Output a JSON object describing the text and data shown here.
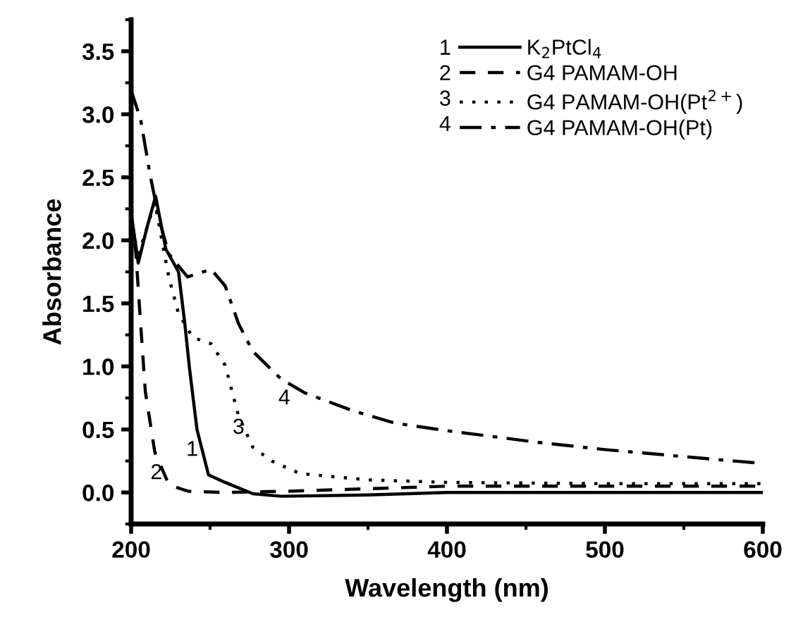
{
  "chart_data": {
    "type": "line",
    "xlabel": "Wavelength (nm)",
    "ylabel": "Absorbance",
    "xlim": [
      200,
      600
    ],
    "ylim": [
      -0.25,
      3.75
    ],
    "xticks": [
      200,
      300,
      400,
      500,
      600
    ],
    "yticks": [
      {
        "value": 0,
        "label": "0.0"
      },
      0.5,
      {
        "value": 1,
        "label": "1.0"
      },
      1.5,
      {
        "value": 2,
        "label": "2.0"
      },
      2.5,
      {
        "value": 3,
        "label": "3.0"
      },
      3.5
    ],
    "legend": "top right",
    "grid": false,
    "series": [
      {
        "name": "K$_{2}$PtCl$_{4}$",
        "color": "#000000",
        "line_style": "solid",
        "x": [
          200,
          204.5,
          210,
          215.5,
          222,
          230,
          234,
          237,
          241.7,
          249,
          259.5,
          277,
          295,
          350,
          400,
          500,
          600
        ],
        "values": [
          2.22,
          1.82,
          2.1,
          2.35,
          1.93,
          1.75,
          1.34,
          0.98,
          0.5,
          0.14,
          0.08,
          -0.01,
          -0.03,
          -0.02,
          0.0,
          0.0,
          0.0
        ]
      },
      {
        "name": "G4 PAMAM-OH",
        "color": "#000000",
        "line_style": "dashed",
        "x": [
          200,
          203,
          206,
          209,
          215,
          224,
          236,
          260,
          300,
          350,
          400,
          500,
          600
        ],
        "values": [
          2.2,
          1.9,
          1.34,
          0.8,
          0.32,
          0.06,
          0.01,
          0.0,
          0.01,
          0.03,
          0.05,
          0.05,
          0.05
        ]
      },
      {
        "name": "G4 PAMAM-OH(Pt$^{2+}$)",
        "color": "#000000",
        "line_style": "dotted",
        "x": [
          200,
          205,
          215,
          224,
          230,
          239,
          250.6,
          259.5,
          268,
          277,
          289,
          307,
          350,
          400,
          500,
          600
        ],
        "values": [
          2.1,
          1.9,
          2.3,
          1.7,
          1.42,
          1.23,
          1.18,
          1.01,
          0.61,
          0.36,
          0.25,
          0.15,
          0.1,
          0.08,
          0.07,
          0.07
        ]
      },
      {
        "name": "G4 PAMAM-OH(Pt)",
        "color": "#000000",
        "line_style": "dashdot",
        "x": [
          200,
          206,
          212,
          218,
          224,
          235.7,
          250.6,
          259.5,
          268,
          277,
          295,
          310,
          340,
          367,
          400,
          456,
          500,
          545,
          600
        ],
        "values": [
          3.19,
          2.96,
          2.52,
          2.15,
          1.89,
          1.71,
          1.77,
          1.64,
          1.34,
          1.12,
          0.9,
          0.79,
          0.65,
          0.55,
          0.49,
          0.4,
          0.34,
          0.29,
          0.23
        ]
      }
    ],
    "annotations": [
      "1",
      "2",
      "3",
      "4"
    ]
  }
}
